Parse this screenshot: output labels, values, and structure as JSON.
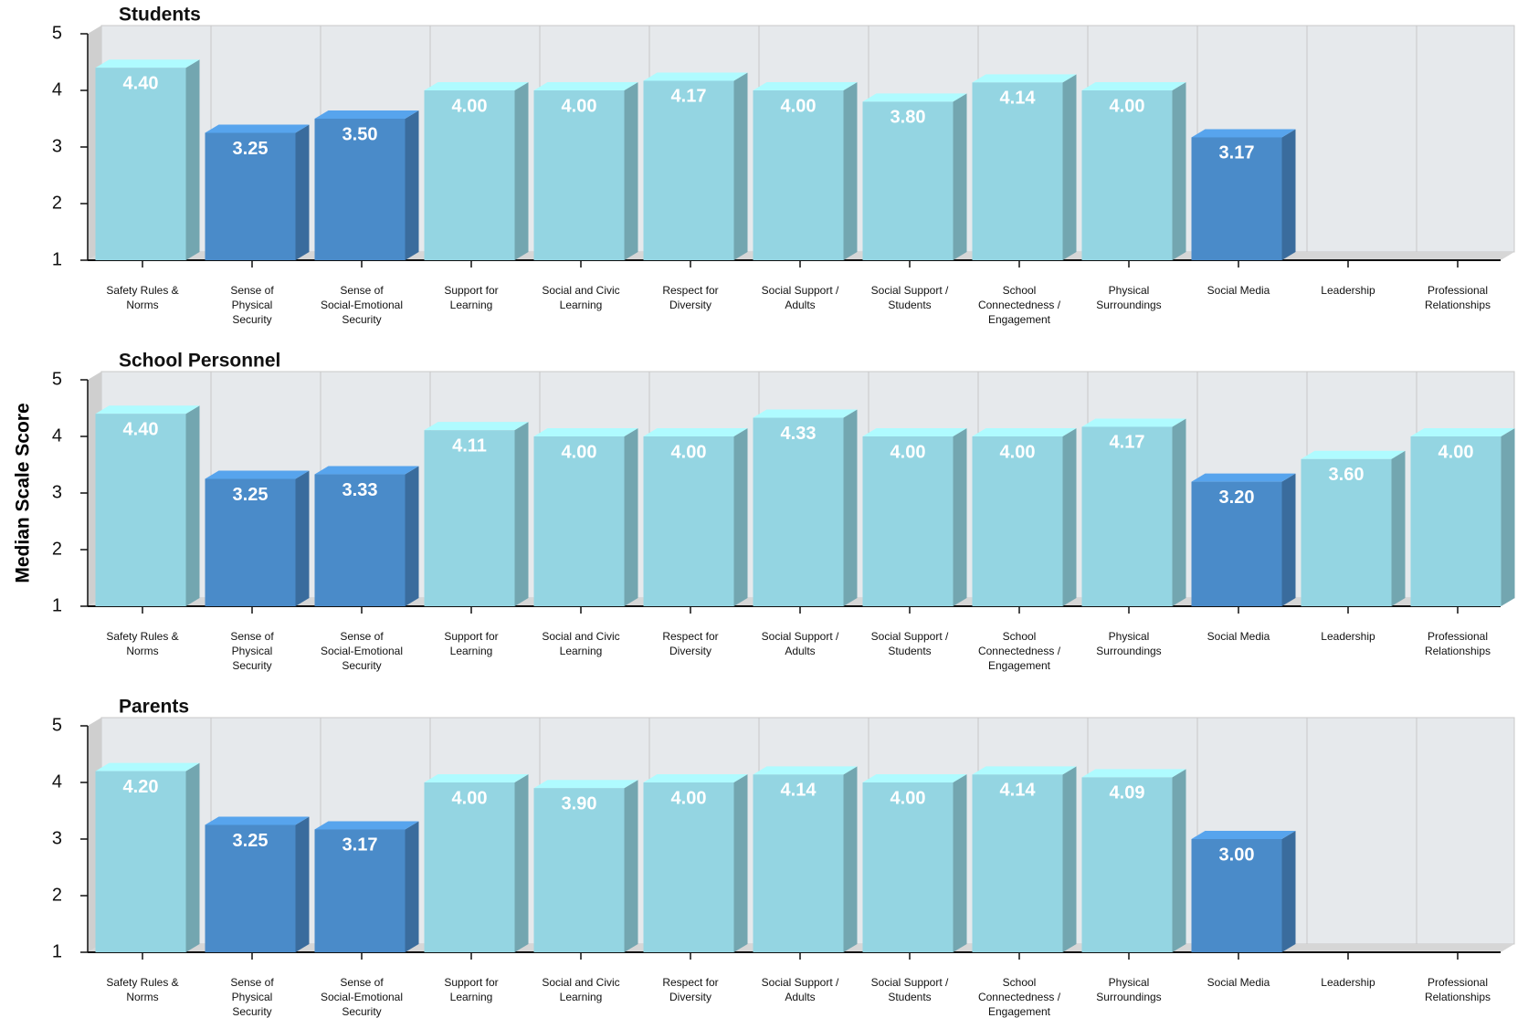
{
  "chart_data": [
    {
      "type": "bar",
      "title": "Students",
      "categories": [
        "Safety Rules & Norms",
        "Sense of Physical Security",
        "Sense of Social-Emotional Security",
        "Support for Learning",
        "Social and Civic Learning",
        "Respect for Diversity",
        "Social Support / Adults",
        "Social Support / Students",
        "School Connectedness / Engagement",
        "Physical Surroundings",
        "Social Media",
        "Leadership",
        "Professional Relationships"
      ],
      "values": [
        4.4,
        3.25,
        3.5,
        4.0,
        4.0,
        4.17,
        4.0,
        3.8,
        4.14,
        4.0,
        3.17,
        null,
        null
      ],
      "value_labels": [
        "4.40",
        "3.25",
        "3.50",
        "4.00",
        "4.00",
        "4.17",
        "4.00",
        "3.80",
        "4.14",
        "4.00",
        "3.17",
        null,
        null
      ],
      "colors": [
        "#94d5e2",
        "#4a8bc9",
        "#4a8bc9",
        "#94d5e2",
        "#94d5e2",
        "#94d5e2",
        "#94d5e2",
        "#94d5e2",
        "#94d5e2",
        "#94d5e2",
        "#4a8bc9",
        "#94d5e2",
        "#94d5e2"
      ],
      "ylim": [
        1,
        5
      ],
      "yticks": [
        1,
        2,
        3,
        4,
        5
      ],
      "grid": false
    },
    {
      "type": "bar",
      "title": "School Personnel",
      "ylabel": "Median Scale Score",
      "categories": [
        "Safety Rules & Norms",
        "Sense of Physical Security",
        "Sense of Social-Emotional Security",
        "Support for Learning",
        "Social and Civic Learning",
        "Respect for Diversity",
        "Social Support / Adults",
        "Social Support / Students",
        "School Connectedness / Engagement",
        "Physical Surroundings",
        "Social Media",
        "Leadership",
        "Professional Relationships"
      ],
      "values": [
        4.4,
        3.25,
        3.33,
        4.11,
        4.0,
        4.0,
        4.33,
        4.0,
        4.0,
        4.17,
        3.2,
        3.6,
        4.0
      ],
      "value_labels": [
        "4.40",
        "3.25",
        "3.33",
        "4.11",
        "4.00",
        "4.00",
        "4.33",
        "4.00",
        "4.00",
        "4.17",
        "3.20",
        "3.60",
        "4.00"
      ],
      "colors": [
        "#94d5e2",
        "#4a8bc9",
        "#4a8bc9",
        "#94d5e2",
        "#94d5e2",
        "#94d5e2",
        "#94d5e2",
        "#94d5e2",
        "#94d5e2",
        "#94d5e2",
        "#4a8bc9",
        "#94d5e2",
        "#94d5e2"
      ],
      "ylim": [
        1,
        5
      ],
      "yticks": [
        1,
        2,
        3,
        4,
        5
      ],
      "grid": false
    },
    {
      "type": "bar",
      "title": "Parents",
      "categories": [
        "Safety Rules & Norms",
        "Sense of Physical Security",
        "Sense of Social-Emotional Security",
        "Support for Learning",
        "Social and Civic Learning",
        "Respect for Diversity",
        "Social Support / Adults",
        "Social Support / Students",
        "School Connectedness / Engagement",
        "Physical Surroundings",
        "Social Media",
        "Leadership",
        "Professional Relationships"
      ],
      "values": [
        4.2,
        3.25,
        3.17,
        4.0,
        3.9,
        4.0,
        4.14,
        4.0,
        4.14,
        4.09,
        3.0,
        null,
        null
      ],
      "value_labels": [
        "4.20",
        "3.25",
        "3.17",
        "4.00",
        "3.90",
        "4.00",
        "4.14",
        "4.00",
        "4.14",
        "4.09",
        "3.00",
        null,
        null
      ],
      "colors": [
        "#94d5e2",
        "#4a8bc9",
        "#4a8bc9",
        "#94d5e2",
        "#94d5e2",
        "#94d5e2",
        "#94d5e2",
        "#94d5e2",
        "#94d5e2",
        "#94d5e2",
        "#4a8bc9",
        "#94d5e2",
        "#94d5e2"
      ],
      "ylim": [
        1,
        5
      ],
      "yticks": [
        1,
        2,
        3,
        4,
        5
      ],
      "grid": false
    }
  ]
}
